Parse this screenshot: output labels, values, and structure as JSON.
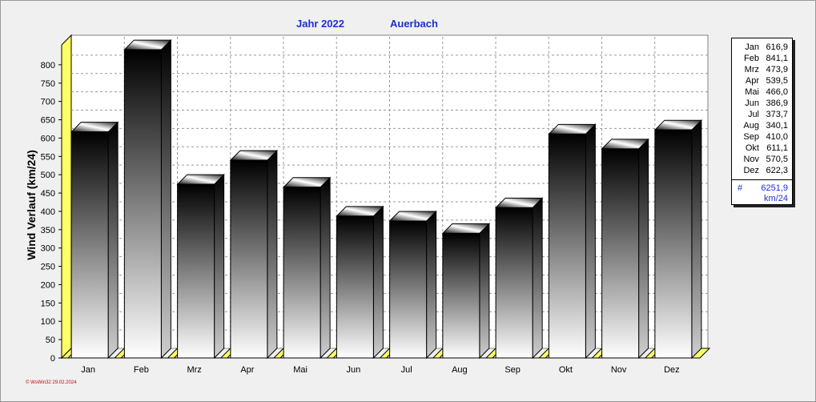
{
  "chart_data": {
    "type": "bar",
    "title_left": "Jahr  2022",
    "title_right": "Auerbach",
    "ylabel": "Wind Verlauf  (km/24)",
    "xlabel": "",
    "ylim": [
      0,
      850
    ],
    "yticks": [
      "0",
      "50",
      "100",
      "150",
      "200",
      "250",
      "300",
      "350",
      "400",
      "450",
      "500",
      "550",
      "600",
      "650",
      "700",
      "750",
      "800"
    ],
    "categories": [
      "Jan",
      "Feb",
      "Mrz",
      "Apr",
      "Mai",
      "Jun",
      "Jul",
      "Aug",
      "Sep",
      "Okt",
      "Nov",
      "Dez"
    ],
    "values": [
      616.9,
      841.1,
      473.9,
      539.5,
      466.0,
      386.9,
      373.7,
      340.1,
      410.0,
      611.1,
      570.5,
      622.3
    ],
    "grid": true,
    "style": "3d-bars-black-to-white-gradient",
    "wall_color": "#ffff66",
    "legend": {
      "placement": "right",
      "rows": [
        {
          "month": "Jan",
          "value": "616,9"
        },
        {
          "month": "Feb",
          "value": "841,1"
        },
        {
          "month": "Mrz",
          "value": "473,9"
        },
        {
          "month": "Apr",
          "value": "539,5"
        },
        {
          "month": "Mai",
          "value": "466,0"
        },
        {
          "month": "Jun",
          "value": "386,9"
        },
        {
          "month": "Jul",
          "value": "373,7"
        },
        {
          "month": "Aug",
          "value": "340,1"
        },
        {
          "month": "Sep",
          "value": "410,0"
        },
        {
          "month": "Okt",
          "value": "611,1"
        },
        {
          "month": "Nov",
          "value": "570,5"
        },
        {
          "month": "Dez",
          "value": "622,3"
        }
      ],
      "total_mark": "#",
      "total_value": "6251,9",
      "total_unit": "km/24"
    }
  },
  "footer": "© WsWin32  29.02.2024"
}
